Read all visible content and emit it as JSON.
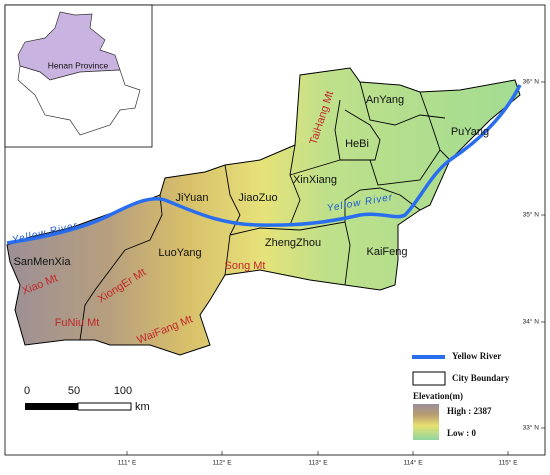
{
  "inset": {
    "label": "Henan Province"
  },
  "cities": [
    "AnYang",
    "PuYang",
    "HeBi",
    "XinXiang",
    "JiaoZuo",
    "JiYuan",
    "SanMenXia",
    "LuoYang",
    "ZhengZhou",
    "KaiFeng"
  ],
  "mountains": [
    "TaiHang Mt",
    "Song Mt",
    "Xiao Mt",
    "XiongEr Mt",
    "FuNiu Mt",
    "WaiFang Mt"
  ],
  "rivers": [
    "Yellow River",
    "Yellow River"
  ],
  "legend": {
    "river": "Yellow River",
    "boundary": "City Boundary",
    "elevation_title": "Elevation(m)",
    "high": "High : 2387",
    "low": "Low : 0"
  },
  "scale_bar": {
    "ticks": [
      "0",
      "50",
      "100"
    ],
    "unit": "km"
  },
  "x_axis": [
    "111° E",
    "112° E",
    "113° E",
    "114° E",
    "115° E"
  ],
  "y_axis": [
    "36° N",
    "35° N",
    "34° N",
    "33° N"
  ]
}
